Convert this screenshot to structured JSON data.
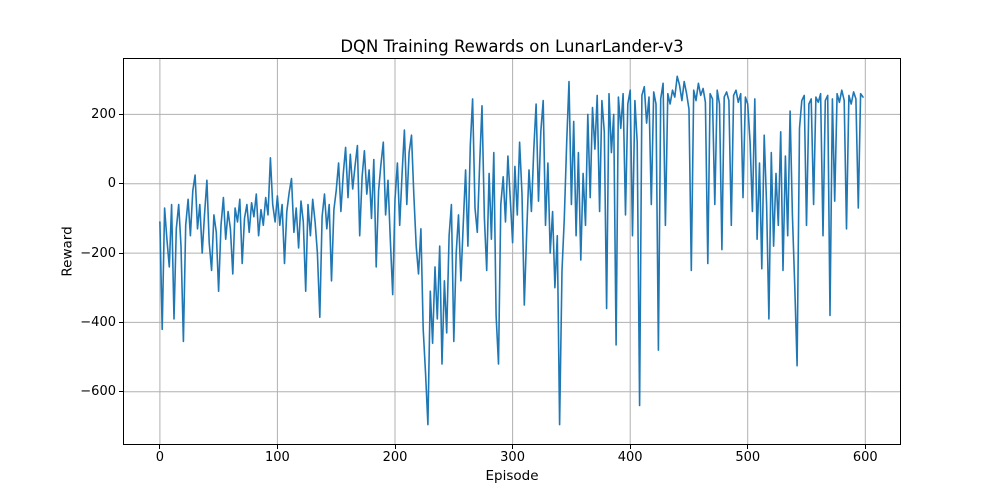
{
  "figure": {
    "background": "#ffffff"
  },
  "chart_data": {
    "type": "line",
    "title": "DQN Training Rewards on LunarLander-v3",
    "xlabel": "Episode",
    "ylabel": "Reward",
    "x_ticks": [
      0,
      100,
      200,
      300,
      400,
      500,
      600
    ],
    "y_ticks": [
      200,
      0,
      -200,
      -400,
      -600
    ],
    "xlim": [
      -30.5,
      629.5
    ],
    "ylim": [
      -751,
      360
    ],
    "grid": true,
    "legend_position": "none",
    "colors": {
      "line": "#1f77b4",
      "grid": "#b0b0b0",
      "spine": "#000000",
      "text": "#000000"
    },
    "x": [
      0,
      2,
      4,
      6,
      8,
      10,
      12,
      14,
      16,
      18,
      20,
      22,
      24,
      26,
      28,
      30,
      32,
      34,
      36,
      38,
      40,
      42,
      44,
      46,
      48,
      50,
      52,
      54,
      56,
      58,
      60,
      62,
      64,
      66,
      68,
      70,
      72,
      74,
      76,
      78,
      80,
      82,
      84,
      86,
      88,
      90,
      92,
      94,
      96,
      98,
      100,
      102,
      104,
      106,
      108,
      110,
      112,
      114,
      116,
      118,
      120,
      122,
      124,
      126,
      128,
      130,
      132,
      134,
      136,
      138,
      140,
      142,
      144,
      146,
      148,
      150,
      152,
      154,
      156,
      158,
      160,
      162,
      164,
      166,
      168,
      170,
      172,
      174,
      176,
      178,
      180,
      182,
      184,
      186,
      188,
      190,
      192,
      194,
      196,
      198,
      200,
      202,
      204,
      206,
      208,
      210,
      212,
      214,
      216,
      218,
      220,
      222,
      224,
      226,
      228,
      230,
      232,
      234,
      236,
      238,
      240,
      242,
      244,
      246,
      248,
      250,
      252,
      254,
      256,
      258,
      260,
      262,
      264,
      266,
      268,
      270,
      272,
      274,
      276,
      278,
      280,
      282,
      284,
      286,
      288,
      290,
      292,
      294,
      296,
      298,
      300,
      302,
      304,
      306,
      308,
      310,
      312,
      314,
      316,
      318,
      320,
      322,
      324,
      326,
      328,
      330,
      332,
      334,
      336,
      338,
      340,
      342,
      344,
      346,
      348,
      350,
      352,
      354,
      356,
      358,
      360,
      362,
      364,
      366,
      368,
      370,
      372,
      374,
      376,
      378,
      380,
      382,
      384,
      386,
      388,
      390,
      392,
      394,
      396,
      398,
      400,
      402,
      404,
      406,
      408,
      410,
      412,
      414,
      416,
      418,
      420,
      422,
      424,
      426,
      428,
      430,
      432,
      434,
      436,
      438,
      440,
      442,
      444,
      446,
      448,
      450,
      452,
      454,
      456,
      458,
      460,
      462,
      464,
      466,
      468,
      470,
      472,
      474,
      476,
      478,
      480,
      482,
      484,
      486,
      488,
      490,
      492,
      494,
      496,
      498,
      500,
      502,
      504,
      506,
      508,
      510,
      512,
      514,
      516,
      518,
      520,
      522,
      524,
      526,
      528,
      530,
      532,
      534,
      536,
      538,
      540,
      542,
      544,
      546,
      548,
      550,
      552,
      554,
      556,
      558,
      560,
      562,
      564,
      566,
      568,
      570,
      572,
      574,
      576,
      578,
      580,
      582,
      584,
      586,
      588,
      590,
      592,
      594,
      596,
      598
    ],
    "values": [
      -110,
      -420,
      -70,
      -160,
      -240,
      -60,
      -390,
      -130,
      -60,
      -180,
      -455,
      -120,
      -45,
      -150,
      -20,
      25,
      -130,
      -60,
      -200,
      -90,
      10,
      -170,
      -250,
      -90,
      -140,
      -310,
      -120,
      -40,
      -160,
      -80,
      -130,
      -260,
      -70,
      -110,
      -45,
      -230,
      -100,
      -60,
      -140,
      -55,
      -95,
      -30,
      -150,
      -75,
      -120,
      -40,
      -90,
      75,
      -60,
      -110,
      -35,
      -120,
      -60,
      -230,
      -80,
      -25,
      15,
      -140,
      -70,
      -185,
      -50,
      -110,
      -310,
      -60,
      -150,
      -45,
      -110,
      -200,
      -385,
      -95,
      -30,
      -130,
      -60,
      -280,
      -75,
      -20,
      60,
      -80,
      30,
      105,
      -40,
      85,
      -15,
      50,
      110,
      -150,
      20,
      95,
      -30,
      40,
      -100,
      70,
      -240,
      -20,
      55,
      120,
      -90,
      10,
      -160,
      -320,
      -45,
      60,
      -120,
      30,
      155,
      -60,
      90,
      140,
      -30,
      -180,
      -260,
      -130,
      -420,
      -550,
      -695,
      -310,
      -460,
      -240,
      -390,
      -180,
      -520,
      -280,
      -430,
      -150,
      -60,
      -455,
      -200,
      -90,
      -280,
      -120,
      40,
      -180,
      110,
      245,
      -70,
      -140,
      60,
      225,
      -100,
      -250,
      30,
      -160,
      90,
      -380,
      -520,
      -60,
      20,
      -110,
      80,
      -40,
      -170,
      50,
      -90,
      120,
      -30,
      -350,
      -140,
      40,
      -80,
      100,
      230,
      -50,
      150,
      240,
      -120,
      60,
      -200,
      -80,
      -300,
      -150,
      -695,
      -250,
      -100,
      120,
      295,
      -60,
      180,
      -150,
      90,
      -220,
      30,
      -120,
      200,
      -40,
      220,
      100,
      255,
      -80,
      240,
      150,
      -360,
      260,
      90,
      200,
      -465,
      250,
      160,
      260,
      -90,
      230,
      270,
      -150,
      240,
      120,
      -640,
      255,
      280,
      175,
      250,
      -60,
      265,
      230,
      -480,
      245,
      290,
      -120,
      260,
      230,
      270,
      250,
      310,
      285,
      240,
      295,
      260,
      215,
      -250,
      270,
      240,
      290,
      255,
      275,
      235,
      -230,
      260,
      245,
      -60,
      270,
      230,
      -190,
      250,
      265,
      240,
      -120,
      255,
      270,
      235,
      260,
      -40,
      250,
      230,
      120,
      -80,
      245,
      -160,
      60,
      -245,
      140,
      -60,
      -390,
      90,
      -180,
      30,
      -120,
      150,
      -250,
      80,
      -150,
      210,
      -90,
      -300,
      -525,
      160,
      240,
      255,
      -120,
      230,
      245,
      -60,
      250,
      235,
      260,
      -150,
      240,
      255,
      -380,
      245,
      -50,
      260,
      235,
      270,
      240,
      -130,
      255,
      230,
      265,
      245,
      -70,
      260,
      250
    ]
  }
}
